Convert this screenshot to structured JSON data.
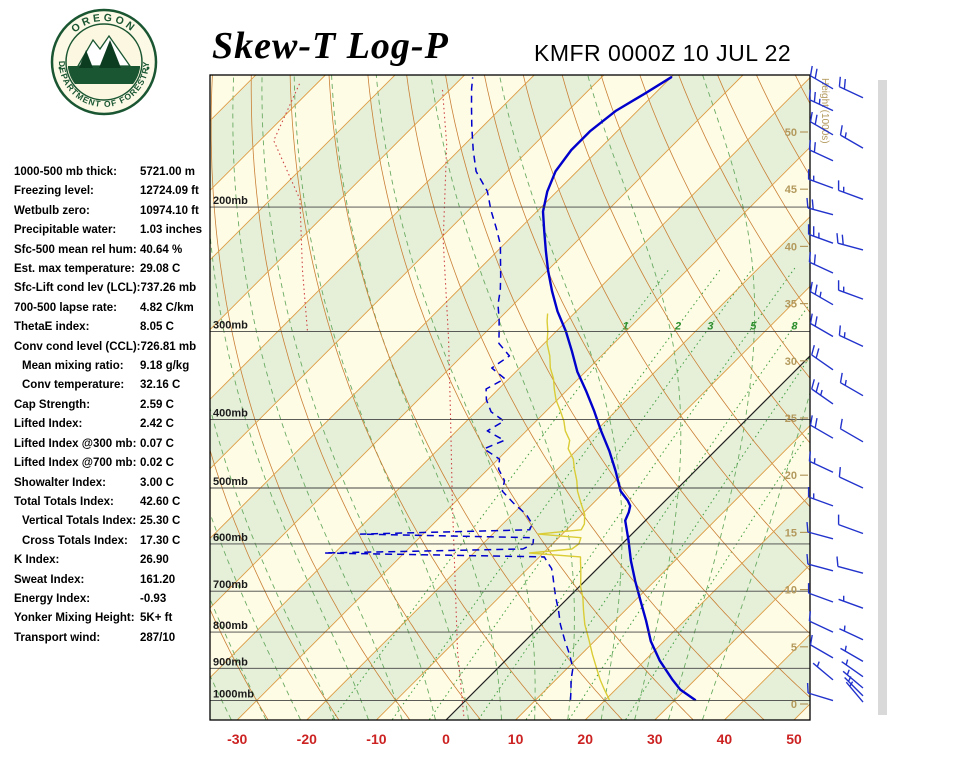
{
  "header": {
    "title": "Skew-T Log-P",
    "station": "KMFR 0000Z 10 JUL 22",
    "logo": {
      "arc_top": "OREGON",
      "arc_bottom": "DEPARTMENT OF FORESTRY"
    }
  },
  "indices": [
    {
      "label": "1000-500 mb thick:",
      "value": "5721.00 m"
    },
    {
      "label": "Freezing level:",
      "value": "12724.09 ft"
    },
    {
      "label": "Wetbulb zero:",
      "value": "10974.10 ft"
    },
    {
      "label": "Precipitable water:",
      "value": "1.03 inches"
    },
    {
      "label": "Sfc-500 mean rel hum:",
      "value": "40.64 %"
    },
    {
      "label": "Est. max temperature:",
      "value": "29.08 C"
    },
    {
      "label": "Sfc-Lift cond lev (LCL):",
      "value": "737.26 mb"
    },
    {
      "label": "700-500 lapse rate:",
      "value": "4.82 C/km"
    },
    {
      "label": "ThetaE index:",
      "value": "8.05 C"
    },
    {
      "label": "Conv cond level (CCL):",
      "value": "726.81 mb"
    },
    {
      "label": "Mean mixing ratio:",
      "value": "9.18 g/kg",
      "indent": true
    },
    {
      "label": "Conv temperature:",
      "value": "32.16 C",
      "indent": true
    },
    {
      "label": "Cap Strength:",
      "value": "2.59 C"
    },
    {
      "label": "Lifted Index:",
      "value": "2.42 C"
    },
    {
      "label": "Lifted Index @300 mb:",
      "value": "0.07 C"
    },
    {
      "label": "Lifted Index @700 mb:",
      "value": "0.02 C"
    },
    {
      "label": "Showalter Index:",
      "value": "3.00 C"
    },
    {
      "label": "Total Totals Index:",
      "value": "42.60 C"
    },
    {
      "label": "Vertical Totals Index:",
      "value": "25.30 C",
      "indent": true
    },
    {
      "label": "Cross Totals Index:",
      "value": "17.30 C",
      "indent": true
    },
    {
      "label": "K Index:",
      "value": "26.90"
    },
    {
      "label": "Sweat Index:",
      "value": "161.20"
    },
    {
      "label": "Energy Index:",
      "value": "-0.93"
    },
    {
      "label": "Yonker Mixing Height:",
      "value": "5K+ ft"
    },
    {
      "label": "Transport wind:",
      "value": "287/10"
    }
  ],
  "chart_data": {
    "type": "skewt",
    "title": "Skew-T Log-P",
    "station": "KMFR 0000Z 10 JUL 22",
    "pressure_lines_mb": [
      200,
      300,
      400,
      500,
      600,
      700,
      800,
      900,
      1000
    ],
    "pressure_label_suffix": "mb",
    "pressure_top_mb": 130,
    "pressure_bottom_mb": 1065,
    "temp_ticks_c": [
      -30,
      -20,
      -10,
      0,
      10,
      20,
      30,
      40,
      50
    ],
    "temp_axis_range_c": [
      -30,
      50
    ],
    "isotherm_step_c": 10,
    "height_ticks_kft": [
      0,
      5,
      10,
      15,
      20,
      25,
      30,
      35,
      40,
      45,
      50
    ],
    "height_axis_label": "Height (1000s)",
    "mixing_ratio_lines_gkg": [
      1,
      2,
      3,
      5,
      8,
      12,
      20
    ],
    "mixing_ratio_labeled": [
      1,
      2,
      3,
      5,
      8
    ],
    "legend": {
      "solid_blue": "temperature",
      "dashed_blue": "dewpoint",
      "yellow": "wetbulb"
    },
    "temperature_trace_c": [
      [
        998,
        32.9
      ],
      [
        965,
        29.3
      ],
      [
        935,
        26.8
      ],
      [
        878,
        22.2
      ],
      [
        824,
        18.1
      ],
      [
        771,
        14.5
      ],
      [
        722,
        10.8
      ],
      [
        677,
        7.2
      ],
      [
        634,
        3.7
      ],
      [
        593,
        0.4
      ],
      [
        556,
        -2.9
      ],
      [
        541,
        -3.6
      ],
      [
        530,
        -4.3
      ],
      [
        521,
        -5.4
      ],
      [
        505,
        -7.8
      ],
      [
        473,
        -11.4
      ],
      [
        443,
        -15.2
      ],
      [
        414,
        -19.4
      ],
      [
        389,
        -23.1
      ],
      [
        364,
        -27.2
      ],
      [
        342,
        -31.2
      ],
      [
        320,
        -34.9
      ],
      [
        300,
        -38.6
      ],
      [
        281,
        -42.7
      ],
      [
        263,
        -46.4
      ],
      [
        246,
        -49.9
      ],
      [
        231,
        -53.0
      ],
      [
        216,
        -56.2
      ],
      [
        203,
        -59.1
      ],
      [
        190,
        -61.4
      ],
      [
        178,
        -63.1
      ],
      [
        166,
        -63.9
      ],
      [
        156,
        -63.9
      ],
      [
        146,
        -63.1
      ],
      [
        138,
        -61.4
      ],
      [
        131,
        -60.0
      ]
    ],
    "dewpoint_trace_c": [
      [
        998,
        15.0
      ],
      [
        965,
        13.6
      ],
      [
        935,
        12.2
      ],
      [
        900,
        10.8
      ],
      [
        860,
        8.3
      ],
      [
        820,
        5.5
      ],
      [
        780,
        2.7
      ],
      [
        745,
        0.4
      ],
      [
        715,
        -1.8
      ],
      [
        690,
        -3.6
      ],
      [
        668,
        -5.2
      ],
      [
        650,
        -6.6
      ],
      [
        636,
        -8.2
      ],
      [
        626,
        -9.3
      ],
      [
        618,
        -41.5
      ],
      [
        610,
        -13.5
      ],
      [
        600,
        -12.8
      ],
      [
        588,
        -13.6
      ],
      [
        581,
        -39.0
      ],
      [
        573,
        -15.3
      ],
      [
        562,
        -15.8
      ],
      [
        545,
        -18.0
      ],
      [
        525,
        -21.5
      ],
      [
        505,
        -24.8
      ],
      [
        488,
        -26.0
      ],
      [
        470,
        -28.5
      ],
      [
        455,
        -29.8
      ],
      [
        440,
        -33.5
      ],
      [
        428,
        -31.8
      ],
      [
        415,
        -35.6
      ],
      [
        402,
        -34.6
      ],
      [
        390,
        -37.8
      ],
      [
        375,
        -40.2
      ],
      [
        362,
        -41.8
      ],
      [
        350,
        -40.6
      ],
      [
        338,
        -44.0
      ],
      [
        325,
        -43.2
      ],
      [
        312,
        -46.5
      ],
      [
        300,
        -48.2
      ],
      [
        288,
        -50.0
      ],
      [
        275,
        -52.2
      ],
      [
        262,
        -54.0
      ],
      [
        250,
        -56.0
      ],
      [
        238,
        -58.2
      ],
      [
        226,
        -60.5
      ],
      [
        214,
        -63.5
      ],
      [
        202,
        -66.8
      ],
      [
        190,
        -70.0
      ],
      [
        178,
        -74.5
      ],
      [
        166,
        -78.0
      ],
      [
        154,
        -81.5
      ],
      [
        144,
        -84.5
      ],
      [
        136,
        -87.0
      ],
      [
        131,
        -88.5
      ]
    ],
    "wetbulb_trace_c": [
      [
        998,
        20.6
      ],
      [
        965,
        18.4
      ],
      [
        935,
        16.4
      ],
      [
        900,
        14.2
      ],
      [
        860,
        11.6
      ],
      [
        820,
        9.0
      ],
      [
        780,
        6.2
      ],
      [
        745,
        4.0
      ],
      [
        715,
        2.1
      ],
      [
        690,
        0.2
      ],
      [
        668,
        -1.2
      ],
      [
        650,
        -2.4
      ],
      [
        636,
        -3.4
      ],
      [
        626,
        -4.1
      ],
      [
        618,
        -12.0
      ],
      [
        610,
        -6.5
      ],
      [
        600,
        -6.2
      ],
      [
        588,
        -6.8
      ],
      [
        581,
        -13.5
      ],
      [
        573,
        -7.9
      ],
      [
        562,
        -8.3
      ],
      [
        545,
        -9.6
      ],
      [
        525,
        -11.8
      ],
      [
        505,
        -14.0
      ],
      [
        488,
        -15.6
      ],
      [
        470,
        -17.6
      ],
      [
        455,
        -19.2
      ],
      [
        440,
        -21.4
      ],
      [
        428,
        -22.4
      ],
      [
        415,
        -24.4
      ],
      [
        402,
        -26.0
      ],
      [
        390,
        -27.8
      ],
      [
        375,
        -30.2
      ],
      [
        362,
        -32.0
      ],
      [
        350,
        -33.6
      ],
      [
        338,
        -35.6
      ],
      [
        325,
        -37.4
      ],
      [
        312,
        -39.6
      ],
      [
        300,
        -41.2
      ],
      [
        290,
        -42.8
      ],
      [
        283,
        -43.8
      ]
    ],
    "aux_dotted_lines": [
      [
        [
          1052,
          2.0
        ],
        [
          850,
          -8.3
        ],
        [
          675,
          -18.8
        ],
        [
          520,
          -30.7
        ],
        [
          400,
          -42.5
        ],
        [
          308,
          -54.3
        ],
        [
          223,
          -69.3
        ],
        [
          163,
          -82.6
        ],
        [
          136,
          -91.2
        ]
      ],
      [
        [
          299,
          -75.9
        ],
        [
          246,
          -85.2
        ],
        [
          195,
          -95.8
        ],
        [
          161,
          -108.0
        ],
        [
          133,
          -112.6
        ]
      ]
    ],
    "wind_barbs": [
      [
        136,
        300,
        20,
        0
      ],
      [
        146,
        295,
        25,
        0
      ],
      [
        158,
        300,
        20,
        0
      ],
      [
        172,
        295,
        20,
        0
      ],
      [
        188,
        290,
        15,
        0
      ],
      [
        205,
        285,
        20,
        0
      ],
      [
        225,
        290,
        25,
        0
      ],
      [
        248,
        295,
        20,
        0
      ],
      [
        275,
        300,
        25,
        0
      ],
      [
        305,
        300,
        20,
        0
      ],
      [
        340,
        305,
        20,
        0
      ],
      [
        380,
        305,
        25,
        0
      ],
      [
        425,
        300,
        20,
        0
      ],
      [
        475,
        295,
        15,
        0
      ],
      [
        530,
        290,
        15,
        0
      ],
      [
        590,
        285,
        10,
        0
      ],
      [
        655,
        285,
        10,
        0
      ],
      [
        725,
        290,
        10,
        0
      ],
      [
        800,
        295,
        10,
        0
      ],
      [
        870,
        300,
        10,
        0
      ],
      [
        935,
        310,
        5,
        0
      ],
      [
        1000,
        287,
        10,
        0
      ],
      [
        140,
        295,
        20,
        1
      ],
      [
        165,
        300,
        15,
        1
      ],
      [
        195,
        290,
        15,
        1
      ],
      [
        230,
        285,
        20,
        1
      ],
      [
        270,
        290,
        15,
        1
      ],
      [
        315,
        295,
        15,
        1
      ],
      [
        370,
        300,
        15,
        1
      ],
      [
        430,
        300,
        10,
        1
      ],
      [
        500,
        295,
        10,
        1
      ],
      [
        580,
        290,
        10,
        1
      ],
      [
        660,
        285,
        10,
        1
      ],
      [
        740,
        290,
        5,
        1
      ],
      [
        820,
        295,
        5,
        1
      ],
      [
        880,
        300,
        5,
        1
      ],
      [
        925,
        305,
        5,
        1
      ],
      [
        960,
        310,
        5,
        1
      ],
      [
        985,
        315,
        5,
        1
      ],
      [
        1005,
        320,
        5,
        1
      ]
    ],
    "colors": {
      "bg": "#fffce6",
      "band_green": "#e6f0d9",
      "band_cream": "#fffce6",
      "isotherm": "#dd9c44",
      "isotherm_zero": "#222222",
      "dry_adiabat": "#c98036",
      "moist_adiabat": "#6aab62",
      "mixing_ratio": "#3f9e3f",
      "mixing_label": "#2f8f2f",
      "pressure_line": "#444444",
      "frame": "#000000",
      "temp_trace": "#0000cc",
      "dew_trace": "#0000cc",
      "wetbulb_trace": "#d9cc35",
      "aux_dotted": "#cc4444",
      "temp_axis_label": "#cc2222",
      "pressure_label": "#1a1a1a",
      "height_scale": "#b3995c",
      "wind_barb": "#2233cc",
      "scroll_strip": "#d9d9d9",
      "logo_green": "#1a5632",
      "logo_dark": "#0d3d21",
      "logo_cream": "#fcf9e6"
    }
  }
}
